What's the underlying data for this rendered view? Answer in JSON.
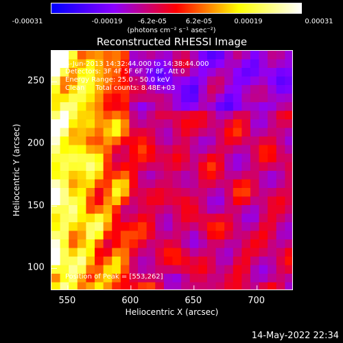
{
  "colorbar": {
    "tick_labels": [
      "-0.00031",
      "-0.00019",
      "-6.2e-05",
      "6.2e-05",
      "0.00019",
      "0.00031"
    ],
    "units": "(photons cm⁻² s⁻¹ asec⁻²)",
    "min": -0.00031,
    "max": 0.00031
  },
  "overlay": {
    "line1": "24-Jun-2013 14:32:44.000 to 14:38:44.000",
    "line2": "Detectors: 3F 4F 5F 6F 7F 8F, Att 0",
    "line3": "Energy Range: 25.0 - 50.0 keV",
    "line4": "Clean     Total counts: 8.48E+03",
    "peak": "Position of Peak = [553,262]"
  },
  "timestamp": "14-May-2022 22:34",
  "chart_data": {
    "type": "heatmap",
    "title": "Reconstructed RHESSI Image",
    "xlabel": "Heliocentric X (arcsec)",
    "ylabel": "Heliocentric Y (arcsec)",
    "xlim": [
      537,
      729
    ],
    "ylim": [
      82,
      275
    ],
    "xticks": [
      550,
      600,
      650,
      700
    ],
    "yticks": [
      100,
      150,
      200,
      250
    ],
    "colormap": [
      "#0000ff",
      "#8b00ff",
      "#ff0000",
      "#ffff00",
      "#ffffff"
    ],
    "grid_size": [
      28,
      28
    ],
    "pattern_note": "bright emission along left edge, fading to violet/blue background toward right"
  }
}
